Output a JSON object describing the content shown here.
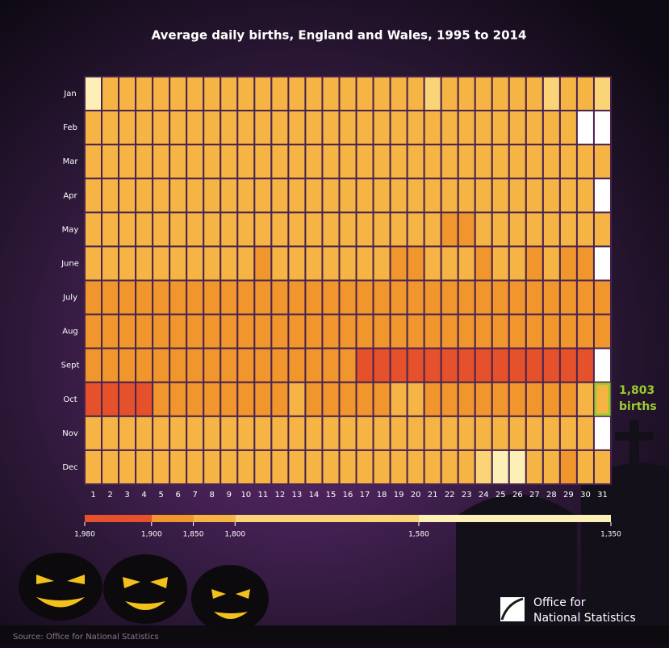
{
  "chart_data": {
    "type": "heatmap",
    "title": "Average daily births, England and Wales, 1995 to 2014",
    "rows": [
      "Jan",
      "Feb",
      "Mar",
      "Apr",
      "May",
      "June",
      "July",
      "Aug",
      "Sept",
      "Oct",
      "Nov",
      "Dec"
    ],
    "columns": [
      "1",
      "2",
      "3",
      "4",
      "5",
      "6",
      "7",
      "8",
      "9",
      "10",
      "11",
      "12",
      "13",
      "14",
      "15",
      "16",
      "17",
      "18",
      "19",
      "20",
      "21",
      "22",
      "23",
      "24",
      "25",
      "26",
      "27",
      "28",
      "29",
      "30",
      "31"
    ],
    "values": [
      [
        1420,
        1800,
        1820,
        1845,
        1830,
        1840,
        1825,
        1810,
        1805,
        1800,
        1815,
        1810,
        1805,
        1800,
        1810,
        1805,
        1800,
        1810,
        1805,
        1800,
        1795,
        1810,
        1805,
        1800,
        1810,
        1805,
        1800,
        1795,
        1805,
        1800,
        1790
      ],
      [
        1820,
        1810,
        1805,
        1815,
        1810,
        1800,
        1810,
        1805,
        1815,
        1810,
        1800,
        1805,
        1810,
        1815,
        1830,
        1810,
        1805,
        1800,
        1810,
        1805,
        1810,
        1815,
        1820,
        1805,
        1810,
        1800,
        1830,
        1835,
        1815,
        null,
        null
      ],
      [
        1830,
        1815,
        1810,
        1820,
        1835,
        1840,
        1825,
        1810,
        1805,
        1815,
        1810,
        1805,
        1820,
        1815,
        1810,
        1805,
        1815,
        1810,
        1805,
        1810,
        1815,
        1820,
        1810,
        1805,
        1815,
        1820,
        1810,
        1805,
        1800,
        1815,
        1810
      ],
      [
        1810,
        1815,
        1805,
        1820,
        1810,
        1800,
        1815,
        1810,
        1805,
        1815,
        1810,
        1805,
        1815,
        1810,
        1805,
        1800,
        1815,
        1820,
        1830,
        1815,
        1810,
        1805,
        1825,
        1815,
        1810,
        1820,
        1830,
        1815,
        1810,
        1825,
        null
      ],
      [
        1840,
        1835,
        1845,
        1830,
        1840,
        1835,
        1845,
        1840,
        1835,
        1845,
        1840,
        1835,
        1830,
        1840,
        1845,
        1835,
        1840,
        1845,
        1840,
        1835,
        1845,
        1860,
        1865,
        1845,
        1840,
        1845,
        1840,
        1835,
        1845,
        1840,
        1835
      ],
      [
        1840,
        1835,
        1845,
        1820,
        1840,
        1835,
        1845,
        1840,
        1835,
        1845,
        1860,
        1835,
        1840,
        1845,
        1840,
        1835,
        1845,
        1840,
        1865,
        1860,
        1845,
        1840,
        1835,
        1860,
        1840,
        1845,
        1860,
        1840,
        1855,
        1860,
        null
      ],
      [
        1870,
        1875,
        1880,
        1865,
        1870,
        1875,
        1880,
        1870,
        1875,
        1880,
        1870,
        1875,
        1865,
        1870,
        1875,
        1880,
        1870,
        1875,
        1880,
        1870,
        1875,
        1865,
        1870,
        1875,
        1880,
        1870,
        1875,
        1860,
        1870,
        1875,
        1880
      ],
      [
        1860,
        1865,
        1870,
        1855,
        1875,
        1880,
        1860,
        1865,
        1870,
        1875,
        1880,
        1865,
        1870,
        1860,
        1865,
        1875,
        1870,
        1865,
        1860,
        1870,
        1875,
        1865,
        1860,
        1870,
        1875,
        1865,
        1870,
        1860,
        1865,
        1870,
        1860
      ],
      [
        1870,
        1875,
        1880,
        1875,
        1880,
        1885,
        1880,
        1875,
        1880,
        1885,
        1890,
        1880,
        1885,
        1880,
        1890,
        1885,
        1920,
        1925,
        1920,
        1925,
        1930,
        1925,
        1920,
        1925,
        1930,
        1925,
        1920,
        1925,
        1920,
        1915,
        null
      ],
      [
        1930,
        1925,
        1920,
        1910,
        1875,
        1870,
        1880,
        1870,
        1875,
        1870,
        1865,
        1870,
        1840,
        1875,
        1870,
        1865,
        1870,
        1865,
        1840,
        1845,
        1865,
        1870,
        1860,
        1865,
        1870,
        1860,
        1855,
        1860,
        1850,
        1845,
        1803
      ],
      [
        1830,
        1825,
        1820,
        1815,
        1830,
        1825,
        1820,
        1815,
        1810,
        1830,
        1835,
        1845,
        1830,
        1825,
        1820,
        1815,
        1830,
        1825,
        1820,
        1815,
        1810,
        1825,
        1830,
        1820,
        1815,
        1825,
        1820,
        1815,
        1810,
        1820,
        null
      ],
      [
        1830,
        1825,
        1820,
        1815,
        1830,
        1825,
        1820,
        1815,
        1810,
        1825,
        1830,
        1820,
        1815,
        1810,
        1805,
        1800,
        1820,
        1840,
        1845,
        1820,
        1815,
        1810,
        1800,
        1650,
        1450,
        1480,
        1820,
        1830,
        1850,
        1820,
        1815
      ]
    ],
    "scale_lim": [
      1980,
      1350
    ],
    "scale_ticks": [
      {
        "value": 1980,
        "label": "1,980"
      },
      {
        "value": 1900,
        "label": "1,900"
      },
      {
        "value": 1850,
        "label": "1,850"
      },
      {
        "value": 1800,
        "label": "1,800"
      },
      {
        "value": 1580,
        "label": "1,580"
      },
      {
        "value": 1350,
        "label": "1,350"
      }
    ],
    "scale_colors": [
      "#e5512b",
      "#f0962c",
      "#f6b445",
      "#fbd477",
      "#fcf0b6"
    ],
    "highlight": {
      "row": 9,
      "column": 30,
      "color": "#9ccc2e"
    },
    "annotation": [
      "1,803",
      "births"
    ],
    "source": "Source: Office for National Statistics",
    "logo": [
      "Office for",
      "National Statistics"
    ]
  }
}
